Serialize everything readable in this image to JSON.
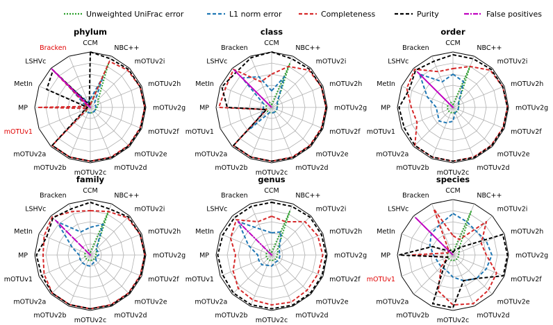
{
  "chart_data": {
    "type": "radar",
    "layout": "2x3 grid of radar panels with shared legend across the top",
    "axes": [
      "CCM",
      "NBC++",
      "mOTUv2i",
      "mOTUv2h",
      "mOTUv2g",
      "mOTUv2f",
      "mOTUv2e",
      "mOTUv2d",
      "mOTUv2c",
      "mOTUv2b",
      "mOTUv2a",
      "mOTUv1",
      "MP",
      "MetIn",
      "LSHVc",
      "Bracken"
    ],
    "range": [
      0,
      1
    ],
    "grid": true,
    "legend": {
      "position": "top",
      "items": [
        {
          "label": "Unweighted UniFrac error",
          "color": "#2ca02c",
          "dash": "dotted"
        },
        {
          "label": "L1 norm error",
          "color": "#1f77b4",
          "dash": "dashed"
        },
        {
          "label": "Completeness",
          "color": "#d62728",
          "dash": "dashed"
        },
        {
          "label": "Purity",
          "color": "#000000",
          "dash": "dashed"
        },
        {
          "label": "False positives",
          "color": "#c000c0",
          "dash": "dashdot"
        }
      ]
    },
    "panels": [
      {
        "title": "phylum",
        "highlight_labels": [
          "Bracken",
          "mOTUv1"
        ],
        "series": [
          {
            "name": "Unweighted UniFrac error",
            "values": [
              0.05,
              0.85,
              0.2,
              0.15,
              0.12,
              0.1,
              0.1,
              0.1,
              0.1,
              0.1,
              0.1,
              0.1,
              0.1,
              0.1,
              0.1,
              0.1
            ]
          },
          {
            "name": "L1 norm error",
            "values": [
              0.15,
              0.6,
              0.1,
              0.1,
              0.1,
              0.1,
              0.1,
              0.1,
              0.1,
              0.1,
              0.1,
              0.1,
              0.1,
              0.1,
              0.6,
              0.1
            ]
          },
          {
            "name": "Completeness",
            "values": [
              0.05,
              0.9,
              0.95,
              0.97,
              0.98,
              0.97,
              0.97,
              0.97,
              0.97,
              0.97,
              0.97,
              0.05,
              0.95,
              0.05,
              0.97,
              0.05
            ]
          },
          {
            "name": "Purity",
            "values": [
              1.0,
              0.95,
              0.97,
              0.97,
              0.98,
              0.98,
              0.98,
              0.98,
              0.97,
              0.97,
              0.97,
              0.1,
              0.05,
              0.85,
              0.95,
              0.05
            ]
          },
          {
            "name": "False positives",
            "values": [
              0.0,
              0.0,
              0.0,
              0.0,
              0.0,
              0.0,
              0.0,
              0.0,
              0.0,
              0.0,
              0.0,
              0.0,
              0.0,
              0.0,
              0.98,
              0.0
            ]
          }
        ]
      },
      {
        "title": "class",
        "highlight_labels": [],
        "series": [
          {
            "name": "Unweighted UniFrac error",
            "values": [
              0.05,
              0.85,
              0.15,
              0.12,
              0.1,
              0.1,
              0.1,
              0.1,
              0.1,
              0.1,
              0.1,
              0.1,
              0.1,
              0.1,
              0.1,
              0.1
            ]
          },
          {
            "name": "L1 norm error",
            "values": [
              0.3,
              0.6,
              0.15,
              0.1,
              0.1,
              0.1,
              0.1,
              0.1,
              0.1,
              0.1,
              0.55,
              0.15,
              0.15,
              0.15,
              0.75,
              0.6
            ]
          },
          {
            "name": "Completeness",
            "values": [
              0.6,
              0.8,
              0.95,
              0.97,
              0.98,
              0.97,
              0.97,
              0.97,
              0.97,
              0.97,
              0.97,
              0.1,
              0.95,
              0.9,
              0.97,
              0.5
            ]
          },
          {
            "name": "Purity",
            "values": [
              1.0,
              0.95,
              0.97,
              0.97,
              0.98,
              0.98,
              0.98,
              0.98,
              0.97,
              0.97,
              0.97,
              0.1,
              0.8,
              0.97,
              0.9,
              0.97
            ]
          },
          {
            "name": "False positives",
            "values": [
              0.0,
              0.0,
              0.0,
              0.0,
              0.0,
              0.0,
              0.0,
              0.0,
              0.0,
              0.0,
              0.0,
              0.0,
              0.0,
              0.0,
              0.95,
              0.0
            ]
          }
        ]
      },
      {
        "title": "order",
        "highlight_labels": [],
        "series": [
          {
            "name": "Unweighted UniFrac error",
            "values": [
              0.05,
              0.8,
              0.15,
              0.12,
              0.1,
              0.1,
              0.1,
              0.1,
              0.1,
              0.1,
              0.1,
              0.1,
              0.1,
              0.1,
              0.1,
              0.1
            ]
          },
          {
            "name": "L1 norm error",
            "values": [
              0.6,
              0.5,
              0.15,
              0.1,
              0.1,
              0.1,
              0.1,
              0.1,
              0.25,
              0.3,
              0.35,
              0.3,
              0.3,
              0.5,
              0.85,
              0.5
            ]
          },
          {
            "name": "Completeness",
            "values": [
              0.7,
              0.8,
              0.95,
              0.97,
              0.98,
              0.97,
              0.97,
              0.97,
              0.97,
              0.97,
              0.97,
              0.7,
              0.75,
              0.9,
              0.97,
              0.7
            ]
          },
          {
            "name": "Purity",
            "values": [
              0.95,
              0.95,
              0.97,
              0.97,
              0.98,
              0.98,
              0.98,
              0.98,
              0.97,
              0.97,
              0.97,
              0.95,
              0.97,
              0.85,
              0.95,
              0.9
            ]
          },
          {
            "name": "False positives",
            "values": [
              0.0,
              0.0,
              0.0,
              0.0,
              0.0,
              0.0,
              0.0,
              0.0,
              0.0,
              0.0,
              0.0,
              0.0,
              0.0,
              0.0,
              0.9,
              0.0
            ]
          }
        ]
      },
      {
        "title": "family",
        "highlight_labels": [],
        "series": [
          {
            "name": "Unweighted UniFrac error",
            "values": [
              0.05,
              0.85,
              0.15,
              0.12,
              0.1,
              0.1,
              0.1,
              0.1,
              0.1,
              0.1,
              0.1,
              0.1,
              0.1,
              0.1,
              0.1,
              0.1
            ]
          },
          {
            "name": "L1 norm error",
            "values": [
              0.5,
              0.6,
              0.15,
              0.15,
              0.15,
              0.1,
              0.15,
              0.15,
              0.2,
              0.2,
              0.2,
              0.2,
              0.2,
              0.35,
              0.85,
              0.45
            ]
          },
          {
            "name": "Completeness",
            "values": [
              0.8,
              0.85,
              0.95,
              0.97,
              0.98,
              0.97,
              0.97,
              0.97,
              0.97,
              0.97,
              0.97,
              0.9,
              0.85,
              0.9,
              0.97,
              0.85
            ]
          },
          {
            "name": "Purity",
            "values": [
              0.95,
              0.9,
              0.97,
              0.97,
              0.98,
              0.98,
              0.98,
              0.98,
              0.97,
              0.97,
              0.97,
              0.95,
              0.97,
              0.85,
              0.95,
              0.9
            ]
          },
          {
            "name": "False positives",
            "values": [
              0.0,
              0.0,
              0.0,
              0.0,
              0.0,
              0.0,
              0.0,
              0.0,
              0.0,
              0.0,
              0.0,
              0.0,
              0.0,
              0.0,
              0.88,
              0.0
            ]
          }
        ]
      },
      {
        "title": "genus",
        "highlight_labels": [],
        "series": [
          {
            "name": "Unweighted UniFrac error",
            "values": [
              0.05,
              0.85,
              0.15,
              0.12,
              0.1,
              0.1,
              0.1,
              0.1,
              0.1,
              0.1,
              0.1,
              0.1,
              0.1,
              0.1,
              0.1,
              0.1
            ]
          },
          {
            "name": "L1 norm error",
            "values": [
              0.4,
              0.45,
              0.2,
              0.15,
              0.15,
              0.15,
              0.15,
              0.15,
              0.2,
              0.2,
              0.25,
              0.25,
              0.25,
              0.45,
              0.85,
              0.5
            ]
          },
          {
            "name": "Completeness",
            "values": [
              0.7,
              0.65,
              0.85,
              0.9,
              0.92,
              0.9,
              0.9,
              0.92,
              0.9,
              0.88,
              0.85,
              0.75,
              0.65,
              0.8,
              0.9,
              0.65
            ]
          },
          {
            "name": "Purity",
            "values": [
              0.95,
              0.95,
              0.97,
              0.97,
              0.98,
              0.98,
              0.98,
              0.98,
              0.97,
              0.97,
              0.97,
              0.95,
              0.97,
              0.95,
              0.95,
              0.95
            ]
          },
          {
            "name": "False positives",
            "values": [
              0.0,
              0.0,
              0.0,
              0.0,
              0.0,
              0.0,
              0.0,
              0.0,
              0.0,
              0.0,
              0.0,
              0.0,
              0.0,
              0.0,
              0.85,
              0.0
            ]
          }
        ]
      },
      {
        "title": "species",
        "highlight_labels": [
          "mOTUv1"
        ],
        "series": [
          {
            "name": "Unweighted UniFrac error",
            "values": [
              0.05,
              0.85,
              0.15,
              0.12,
              0.1,
              0.1,
              0.1,
              0.1,
              0.1,
              0.1,
              0.1,
              0.1,
              0.1,
              0.1,
              0.1,
              0.1
            ]
          },
          {
            "name": "L1 norm error",
            "values": [
              0.75,
              0.65,
              0.6,
              0.65,
              0.7,
              0.65,
              0.6,
              0.5,
              0.4,
              0.3,
              0.3,
              0.3,
              0.35,
              0.45,
              0.55,
              0.6
            ]
          },
          {
            "name": "Completeness",
            "values": [
              0.35,
              0.3,
              0.85,
              0.55,
              0.6,
              0.85,
              0.9,
              0.95,
              0.9,
              0.7,
              0.3,
              0.1,
              0.75,
              0.1,
              0.1,
              0.9
            ]
          },
          {
            "name": "Purity",
            "values": [
              0.05,
              0.1,
              0.2,
              0.97,
              0.98,
              0.98,
              0.6,
              0.5,
              0.95,
              0.95,
              0.2,
              0.1,
              0.97,
              0.4,
              0.1,
              0.1
            ]
          },
          {
            "name": "False positives",
            "values": [
              0.0,
              0.0,
              0.0,
              0.0,
              0.0,
              0.0,
              0.0,
              0.0,
              0.0,
              0.0,
              0.0,
              0.0,
              0.0,
              0.0,
              0.95,
              0.0
            ]
          }
        ]
      }
    ]
  }
}
